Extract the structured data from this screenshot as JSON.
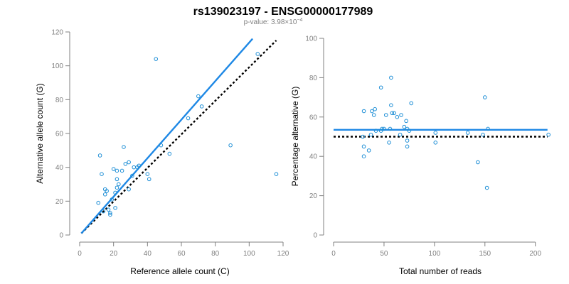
{
  "title": "rs139023197 - ENSG00000177989",
  "subtitle": {
    "prefix": "p-value: 3.98×10",
    "exponent": "−4"
  },
  "chart_data": [
    {
      "type": "scatter",
      "id": "left",
      "xlabel": "Reference allele count (C)",
      "ylabel": "Alternative allele count (G)",
      "xlim": [
        0,
        120
      ],
      "ylim": [
        0,
        120
      ],
      "xticks": [
        0,
        20,
        40,
        60,
        80,
        100,
        120
      ],
      "yticks": [
        0,
        20,
        40,
        60,
        80,
        100,
        120
      ],
      "points": [
        [
          12,
          47
        ],
        [
          13,
          36
        ],
        [
          11,
          19
        ],
        [
          14,
          14
        ],
        [
          15,
          27
        ],
        [
          15,
          24
        ],
        [
          16,
          26
        ],
        [
          17,
          15
        ],
        [
          18,
          12
        ],
        [
          18,
          13
        ],
        [
          19,
          21
        ],
        [
          20,
          39
        ],
        [
          21,
          16
        ],
        [
          21,
          25
        ],
        [
          22,
          28
        ],
        [
          22,
          38
        ],
        [
          22,
          33
        ],
        [
          23,
          30
        ],
        [
          25,
          38
        ],
        [
          26,
          52
        ],
        [
          27,
          42
        ],
        [
          29,
          27
        ],
        [
          29,
          43
        ],
        [
          31,
          35
        ],
        [
          32,
          40
        ],
        [
          34,
          40
        ],
        [
          35,
          41
        ],
        [
          40,
          36
        ],
        [
          41,
          33
        ],
        [
          45,
          104
        ],
        [
          48,
          53
        ],
        [
          53,
          48
        ],
        [
          64,
          69
        ],
        [
          70,
          82
        ],
        [
          72,
          76
        ],
        [
          89,
          53
        ],
        [
          105,
          107
        ],
        [
          116,
          36
        ]
      ],
      "fit_line": {
        "name": "fit",
        "x": [
          1,
          102
        ],
        "y": [
          1,
          116
        ]
      },
      "reference_line": {
        "name": "reference",
        "x": [
          1,
          116
        ],
        "y": [
          1,
          115
        ]
      }
    },
    {
      "type": "scatter",
      "id": "right",
      "xlabel": "Total number of reads",
      "ylabel": "Percentage alternative (G)",
      "xlim": [
        0,
        215
      ],
      "ylim": [
        0,
        100
      ],
      "xticks": [
        0,
        50,
        100,
        150,
        200
      ],
      "yticks": [
        0,
        20,
        40,
        60,
        80,
        100
      ],
      "points": [
        [
          29,
          50
        ],
        [
          30,
          40
        ],
        [
          30,
          45
        ],
        [
          30,
          63
        ],
        [
          35,
          43
        ],
        [
          37,
          51
        ],
        [
          38,
          63
        ],
        [
          40,
          61
        ],
        [
          41,
          64
        ],
        [
          42,
          53
        ],
        [
          47,
          75
        ],
        [
          47,
          53
        ],
        [
          48,
          54
        ],
        [
          50,
          54
        ],
        [
          52,
          61
        ],
        [
          55,
          47
        ],
        [
          56,
          54
        ],
        [
          57,
          80
        ],
        [
          57,
          66
        ],
        [
          58,
          62
        ],
        [
          60,
          62
        ],
        [
          63,
          60
        ],
        [
          66,
          51
        ],
        [
          67,
          61
        ],
        [
          70,
          55
        ],
        [
          72,
          58
        ],
        [
          73,
          45
        ],
        [
          73,
          48
        ],
        [
          73,
          54
        ],
        [
          75,
          53
        ],
        [
          77,
          67
        ],
        [
          101,
          47
        ],
        [
          101,
          52
        ],
        [
          133,
          52
        ],
        [
          143,
          37
        ],
        [
          148,
          51
        ],
        [
          150,
          70
        ],
        [
          152,
          24
        ],
        [
          153,
          54
        ],
        [
          213,
          51
        ]
      ],
      "fit_line": {
        "name": "fit",
        "x": [
          0,
          212
        ],
        "y": [
          53.5,
          53.5
        ]
      },
      "reference_line": {
        "name": "reference",
        "x": [
          0,
          212
        ],
        "y": [
          50,
          50
        ]
      }
    }
  ]
}
